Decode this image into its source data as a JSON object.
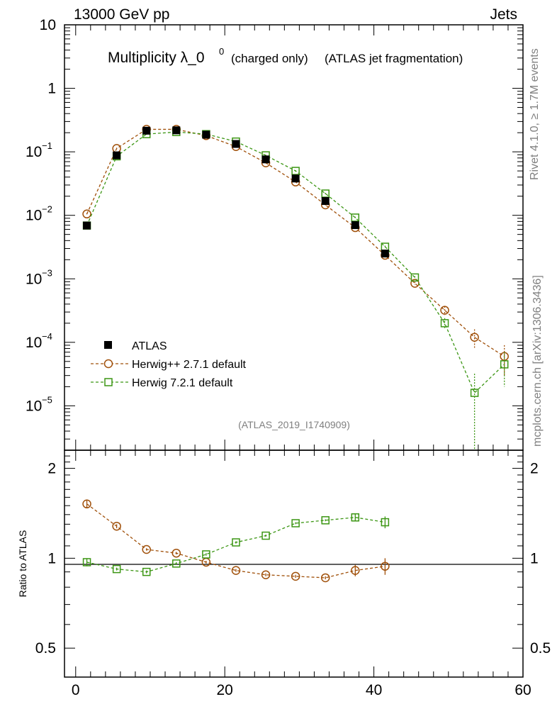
{
  "header": {
    "left": "13000 GeV pp",
    "right": "Jets"
  },
  "side": {
    "top": "Rivet 4.1.0, ≥ 1.7M events",
    "bottom": "mcplots.cern.ch [arXiv:1306.3436]"
  },
  "colors": {
    "atlas": "#000000",
    "herwigpp": "#a0500a",
    "herwig7": "#3c9614",
    "watermark": "#808080"
  },
  "chart_data": {
    "type": "scatter",
    "title_main": "Multiplicity λ_0",
    "title_sup": "0",
    "title_sub1": "(charged only)",
    "title_sub2": "(ATLAS jet fragmentation)",
    "watermark": "(ATLAS_2019_I1740909)",
    "xlim": [
      -1.5,
      60
    ],
    "ylim": [
      2e-06,
      10
    ],
    "ratio_ylim": [
      0.4,
      2.3
    ],
    "ylabel_ratio": "Ratio to ATLAS",
    "x_ticks": [
      "0",
      "20",
      "40",
      "60"
    ],
    "y_ticks_ratio": [
      "2",
      "1",
      "0.5"
    ],
    "x": [
      1.5,
      5.5,
      9.5,
      13.5,
      17.5,
      21.5,
      25.5,
      29.5,
      33.5,
      37.5,
      41.5,
      45.5,
      49.5,
      53.5,
      57.5
    ],
    "series": [
      {
        "name": "ATLAS",
        "key": "atlas",
        "marker": "filled-square",
        "values": [
          0.0069,
          0.088,
          0.215,
          0.218,
          0.186,
          0.133,
          0.076,
          0.038,
          0.0168,
          0.007,
          0.0025,
          null,
          null,
          null,
          null
        ],
        "errors": [
          0.0004,
          0.004,
          0.008,
          0.008,
          0.007,
          0.005,
          0.003,
          0.0015,
          0.0007,
          0.0003,
          0.00012,
          null,
          null,
          null,
          null
        ]
      },
      {
        "name": "Herwig++ 2.7.1 default",
        "key": "herwigpp",
        "marker": "open-circle",
        "values": [
          0.0105,
          0.113,
          0.226,
          0.226,
          0.18,
          0.121,
          0.067,
          0.0335,
          0.0146,
          0.0064,
          0.00235,
          0.00085,
          0.00032,
          0.00012,
          6e-05
        ],
        "errors": [
          0.0004,
          0.003,
          0.005,
          0.005,
          0.004,
          0.003,
          0.002,
          0.001,
          0.0005,
          0.0003,
          0.0001,
          5e-05,
          5e-05,
          4e-05,
          3e-05
        ],
        "ratio": [
          1.52,
          1.28,
          1.07,
          1.04,
          0.97,
          0.91,
          0.88,
          0.87,
          0.86,
          0.91,
          0.94
        ],
        "ratio_err": [
          0.04,
          0.02,
          0.01,
          0.01,
          0.01,
          0.01,
          0.01,
          0.01,
          0.01,
          0.04,
          0.06
        ]
      },
      {
        "name": "Herwig 7.2.1 default",
        "key": "herwig7",
        "marker": "open-square",
        "values": [
          0.0069,
          0.085,
          0.19,
          0.205,
          0.19,
          0.145,
          0.088,
          0.05,
          0.022,
          0.0092,
          0.0032,
          0.00105,
          0.0002,
          1.6e-05,
          4.5e-05
        ],
        "errors": [
          0.0003,
          0.003,
          0.004,
          0.005,
          0.004,
          0.003,
          0.002,
          0.0012,
          0.0006,
          0.0003,
          0.00013,
          5e-05,
          4e-05,
          1.6e-05,
          2.5e-05
        ],
        "ratio": [
          0.97,
          0.92,
          0.9,
          0.96,
          1.03,
          1.13,
          1.19,
          1.31,
          1.34,
          1.37,
          1.32
        ],
        "ratio_err": [
          0.03,
          0.01,
          0.01,
          0.01,
          0.01,
          0.01,
          0.01,
          0.01,
          0.01,
          0.04,
          0.06
        ]
      }
    ]
  }
}
